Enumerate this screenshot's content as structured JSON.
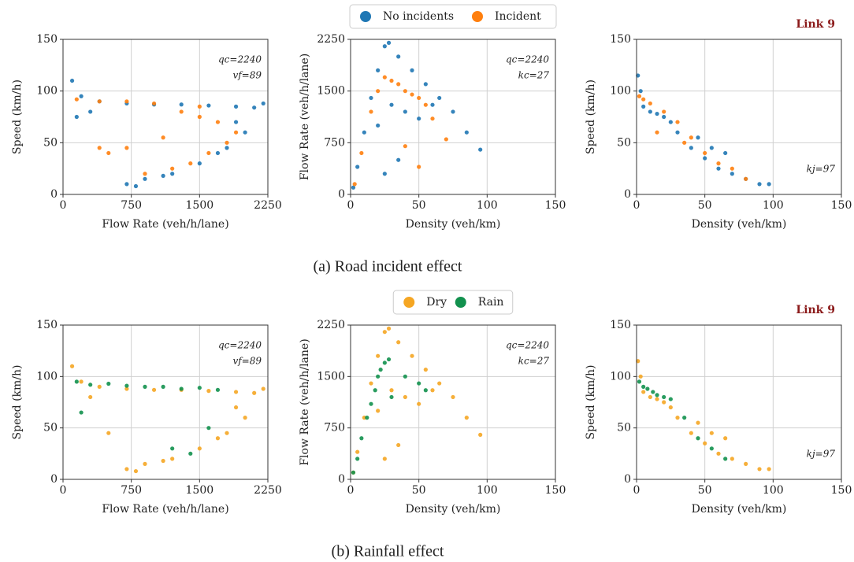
{
  "captions": [
    "(a) Road incident effect",
    "(b) Rainfall effect"
  ],
  "chart_data": [
    {
      "type": "scatter",
      "xlabel": "Flow Rate (veh/h/lane)",
      "ylabel": "Speed (km/h)",
      "xlim": [
        0,
        2250
      ],
      "ylim": [
        0,
        150
      ],
      "xticks": [
        0,
        750,
        1500,
        2250
      ],
      "yticks": [
        0,
        50,
        100,
        150
      ],
      "grid": true,
      "annotations": [
        "qc=2240",
        "vf=89"
      ],
      "annotation_corner": "top-right",
      "series": [
        {
          "name": "No incidents",
          "color": "#1f77b4",
          "x": [
            100,
            200,
            400,
            700,
            1000,
            1300,
            1600,
            1900,
            2100,
            2200,
            2000,
            1800,
            1500,
            1200,
            900,
            700,
            800,
            1100,
            1700,
            1900,
            300,
            150
          ],
          "values": [
            110,
            95,
            90,
            88,
            87,
            87,
            86,
            85,
            84,
            88,
            60,
            45,
            30,
            20,
            15,
            10,
            8,
            18,
            40,
            70,
            80,
            75
          ]
        },
        {
          "name": "Incident",
          "color": "#ff7f0e",
          "x": [
            150,
            400,
            700,
            1000,
            1300,
            1500,
            1700,
            1900,
            1600,
            1400,
            1200,
            900,
            700,
            400,
            500,
            1100,
            1500,
            1800
          ],
          "values": [
            92,
            90,
            90,
            88,
            80,
            75,
            70,
            60,
            40,
            30,
            25,
            20,
            45,
            45,
            40,
            55,
            85,
            50
          ]
        }
      ]
    },
    {
      "type": "scatter",
      "xlabel": "Density (veh/km)",
      "ylabel": "Flow Rate (veh/h/lane)",
      "xlim": [
        0,
        150
      ],
      "ylim": [
        0,
        2250
      ],
      "xticks": [
        0,
        50,
        100,
        150
      ],
      "yticks": [
        0,
        750,
        1500,
        2250
      ],
      "grid": true,
      "legend": "top",
      "annotations": [
        "qc=2240",
        "kc=27"
      ],
      "annotation_corner": "top-right",
      "series": [
        {
          "name": "No incidents",
          "color": "#1f77b4",
          "x": [
            2,
            5,
            10,
            15,
            20,
            25,
            28,
            35,
            45,
            55,
            65,
            75,
            85,
            95,
            40,
            50,
            30,
            20,
            60,
            25,
            35
          ],
          "values": [
            100,
            400,
            900,
            1400,
            1800,
            2150,
            2200,
            2000,
            1800,
            1600,
            1400,
            1200,
            900,
            650,
            1200,
            1100,
            1300,
            1000,
            1300,
            300,
            500
          ]
        },
        {
          "name": "Incident",
          "color": "#ff7f0e",
          "x": [
            3,
            8,
            15,
            20,
            25,
            30,
            35,
            40,
            45,
            50,
            55,
            60,
            70,
            40,
            50
          ],
          "values": [
            150,
            600,
            1200,
            1500,
            1700,
            1650,
            1600,
            1500,
            1450,
            1400,
            1300,
            1100,
            800,
            700,
            400
          ]
        }
      ]
    },
    {
      "type": "scatter",
      "xlabel": "Density (veh/km)",
      "ylabel": "Speed (km/h)",
      "xlim": [
        0,
        150
      ],
      "ylim": [
        0,
        150
      ],
      "xticks": [
        0,
        50,
        100,
        150
      ],
      "yticks": [
        0,
        50,
        100,
        150
      ],
      "grid": true,
      "tag": "Link 9",
      "annotations": [
        "kj=97"
      ],
      "annotation_corner": "bottom-right",
      "series": [
        {
          "name": "No incidents",
          "color": "#1f77b4",
          "x": [
            1,
            3,
            5,
            10,
            15,
            20,
            30,
            40,
            50,
            60,
            70,
            80,
            90,
            97,
            25,
            45,
            55,
            65
          ],
          "values": [
            115,
            100,
            85,
            80,
            78,
            75,
            60,
            45,
            35,
            25,
            20,
            15,
            10,
            10,
            70,
            55,
            45,
            40
          ]
        },
        {
          "name": "Incident",
          "color": "#ff7f0e",
          "x": [
            2,
            5,
            10,
            20,
            30,
            40,
            50,
            60,
            70,
            80,
            15,
            35
          ],
          "values": [
            95,
            92,
            88,
            80,
            70,
            55,
            40,
            30,
            25,
            15,
            60,
            50
          ]
        }
      ]
    },
    {
      "type": "scatter",
      "xlabel": "Flow Rate (veh/h/lane)",
      "ylabel": "Speed (km/h)",
      "xlim": [
        0,
        2250
      ],
      "ylim": [
        0,
        150
      ],
      "xticks": [
        0,
        750,
        1500,
        2250
      ],
      "yticks": [
        0,
        50,
        100,
        150
      ],
      "grid": true,
      "annotations": [
        "qc=2240",
        "vf=89"
      ],
      "annotation_corner": "top-right",
      "series": [
        {
          "name": "Dry",
          "color": "#f5a623",
          "x": [
            100,
            200,
            400,
            700,
            1000,
            1300,
            1600,
            1900,
            2100,
            2200,
            2000,
            1800,
            1500,
            1200,
            900,
            700,
            800,
            1100,
            1700,
            1900,
            300,
            500
          ],
          "values": [
            110,
            95,
            90,
            88,
            87,
            87,
            86,
            85,
            84,
            88,
            60,
            45,
            30,
            20,
            15,
            10,
            8,
            18,
            40,
            70,
            80,
            45
          ]
        },
        {
          "name": "Rain",
          "color": "#12914e",
          "x": [
            150,
            300,
            500,
            700,
            900,
            1100,
            1300,
            1500,
            1700,
            1400,
            1200,
            1600,
            200
          ],
          "values": [
            95,
            92,
            93,
            91,
            90,
            90,
            88,
            89,
            87,
            25,
            30,
            50,
            65
          ]
        }
      ]
    },
    {
      "type": "scatter",
      "xlabel": "Density (veh/km)",
      "ylabel": "Flow Rate (veh/h/lane)",
      "xlim": [
        0,
        150
      ],
      "ylim": [
        0,
        2250
      ],
      "xticks": [
        0,
        50,
        100,
        150
      ],
      "yticks": [
        0,
        750,
        1500,
        2250
      ],
      "grid": true,
      "legend": "top",
      "annotations": [
        "qc=2240",
        "kc=27"
      ],
      "annotation_corner": "top-right",
      "series": [
        {
          "name": "Dry",
          "color": "#f5a623",
          "x": [
            2,
            5,
            10,
            15,
            20,
            25,
            28,
            35,
            45,
            55,
            65,
            75,
            85,
            95,
            40,
            50,
            30,
            20,
            60,
            25,
            35
          ],
          "values": [
            100,
            400,
            900,
            1400,
            1800,
            2150,
            2200,
            2000,
            1800,
            1600,
            1400,
            1200,
            900,
            650,
            1200,
            1100,
            1300,
            1000,
            1300,
            300,
            500
          ]
        },
        {
          "name": "Rain",
          "color": "#12914e",
          "x": [
            2,
            5,
            8,
            12,
            15,
            18,
            20,
            22,
            25,
            28,
            30,
            40,
            50,
            55
          ],
          "values": [
            100,
            300,
            600,
            900,
            1100,
            1300,
            1500,
            1600,
            1700,
            1750,
            1200,
            1500,
            1400,
            1300
          ]
        }
      ]
    },
    {
      "type": "scatter",
      "xlabel": "Density (veh/km)",
      "ylabel": "Speed (km/h)",
      "xlim": [
        0,
        150
      ],
      "ylim": [
        0,
        150
      ],
      "xticks": [
        0,
        50,
        100,
        150
      ],
      "yticks": [
        0,
        50,
        100,
        150
      ],
      "grid": true,
      "tag": "Link 9",
      "annotations": [
        "kj=97"
      ],
      "annotation_corner": "bottom-right",
      "series": [
        {
          "name": "Dry",
          "color": "#f5a623",
          "x": [
            1,
            3,
            5,
            10,
            15,
            20,
            30,
            40,
            50,
            60,
            70,
            80,
            90,
            97,
            25,
            45,
            55,
            65
          ],
          "values": [
            115,
            100,
            85,
            80,
            78,
            75,
            60,
            45,
            35,
            25,
            20,
            15,
            10,
            10,
            70,
            55,
            45,
            40
          ]
        },
        {
          "name": "Rain",
          "color": "#12914e",
          "x": [
            2,
            5,
            8,
            12,
            15,
            20,
            25,
            35,
            45,
            55,
            65
          ],
          "values": [
            95,
            90,
            88,
            85,
            82,
            80,
            78,
            60,
            40,
            30,
            20
          ]
        }
      ]
    }
  ]
}
